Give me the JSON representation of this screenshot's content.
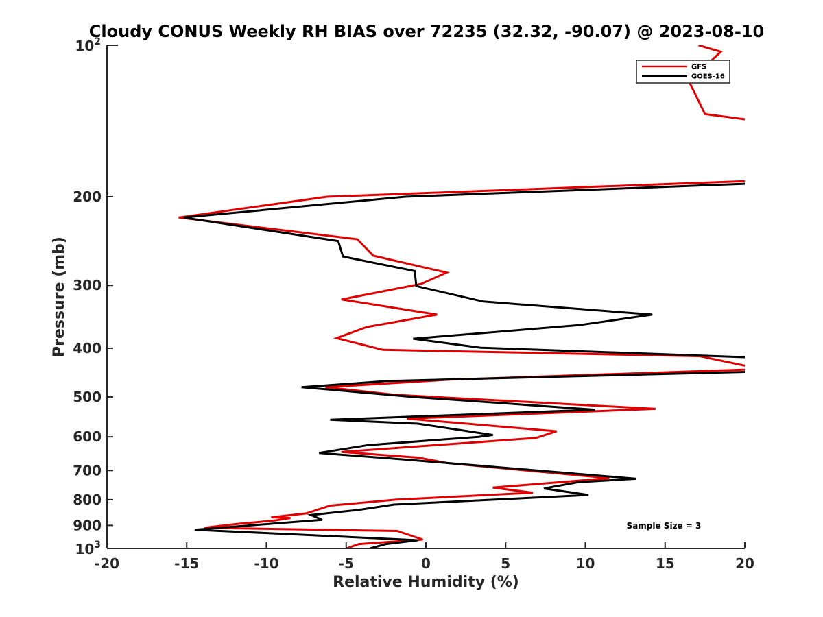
{
  "chart_data": {
    "type": "line",
    "title": "Cloudy CONUS Weekly RH BIAS over 72235 (32.32, -90.07) @ 2023-08-10",
    "xlabel": "Relative Humidity (%)",
    "ylabel": "Pressure (mb)",
    "xlim": [
      -20,
      20
    ],
    "ylim": [
      100,
      1000
    ],
    "yscale": "log",
    "y_reversed": true,
    "grid": false,
    "legend_position": "top-right",
    "x_ticks": [
      -20,
      -15,
      -10,
      -5,
      0,
      5,
      10,
      15,
      20
    ],
    "x_tick_labels": [
      "-20",
      "-15",
      "-10",
      "-5",
      "0",
      "5",
      "10",
      "15",
      "20"
    ],
    "y_ticks_minor": [
      200,
      300,
      400,
      500,
      600,
      700,
      800,
      900
    ],
    "y_tick_labels_minor": [
      "200",
      "300",
      "400",
      "500",
      "600",
      "700",
      "800",
      "900"
    ],
    "y_ticks_major": [
      {
        "value": 100,
        "base": "10",
        "exp": "2"
      },
      {
        "value": 1000,
        "base": "10",
        "exp": "3"
      }
    ],
    "annotation": "Sample Size = 3",
    "series": [
      {
        "name": "GFS",
        "color": "#e00000",
        "points": [
          [
            17.1,
            100
          ],
          [
            18.5,
            103
          ],
          [
            16.5,
            118
          ],
          [
            17.5,
            137
          ],
          [
            20.5,
            141
          ],
          [
            20.5,
            186
          ],
          [
            -6.2,
            200
          ],
          [
            -15.5,
            220
          ],
          [
            -4.3,
            243
          ],
          [
            -3.3,
            262
          ],
          [
            1.3,
            283
          ],
          [
            -0.3,
            298
          ],
          [
            -5.3,
            320
          ],
          [
            0.7,
            343
          ],
          [
            -3.7,
            363
          ],
          [
            -5.6,
            382
          ],
          [
            -2.7,
            403
          ],
          [
            17.2,
            415
          ],
          [
            21,
            440
          ],
          [
            1.5,
            462
          ],
          [
            -6.3,
            478
          ],
          [
            -2,
            495
          ],
          [
            14.4,
            528
          ],
          [
            -1.2,
            552
          ],
          [
            8.2,
            585
          ],
          [
            6.9,
            603
          ],
          [
            -5.3,
            643
          ],
          [
            -0.5,
            660
          ],
          [
            1.4,
            677
          ],
          [
            11.5,
            725
          ],
          [
            4.2,
            757
          ],
          [
            6.7,
            775
          ],
          [
            -1.9,
            800
          ],
          [
            -6,
            822
          ],
          [
            -7.5,
            852
          ],
          [
            -9.7,
            867
          ],
          [
            -8.5,
            870
          ],
          [
            -9.5,
            880
          ],
          [
            -12,
            895
          ],
          [
            -13.9,
            910
          ],
          [
            -1.8,
            923
          ],
          [
            -0.2,
            960
          ],
          [
            -4.2,
            980
          ],
          [
            -5,
            1000
          ]
        ]
      },
      {
        "name": "GOES-16",
        "color": "#000000",
        "points": [
          [
            21,
            188
          ],
          [
            -1.3,
            200
          ],
          [
            -15.2,
            220
          ],
          [
            -5.5,
            245
          ],
          [
            -5.2,
            263
          ],
          [
            -0.7,
            281
          ],
          [
            -0.6,
            301
          ],
          [
            3.6,
            323
          ],
          [
            14.2,
            343
          ],
          [
            9.6,
            360
          ],
          [
            -0.8,
            383
          ],
          [
            3.4,
            399
          ],
          [
            21,
            418
          ],
          [
            21,
            445
          ],
          [
            -2.5,
            465
          ],
          [
            -7.8,
            478
          ],
          [
            -0.8,
            500
          ],
          [
            10.6,
            530
          ],
          [
            -6,
            555
          ],
          [
            -0.5,
            565
          ],
          [
            4.2,
            595
          ],
          [
            3.3,
            600
          ],
          [
            -3.6,
            623
          ],
          [
            -6.7,
            646
          ],
          [
            -1.3,
            666
          ],
          [
            2.7,
            682
          ],
          [
            13.2,
            727
          ],
          [
            9.6,
            738
          ],
          [
            7.4,
            760
          ],
          [
            10.2,
            783
          ],
          [
            -2,
            818
          ],
          [
            -4.2,
            838
          ],
          [
            -7.2,
            858
          ],
          [
            -6.5,
            877
          ],
          [
            -14.5,
            918
          ],
          [
            -0.5,
            963
          ],
          [
            -2.5,
            980
          ],
          [
            -3.5,
            1000
          ]
        ]
      }
    ]
  }
}
